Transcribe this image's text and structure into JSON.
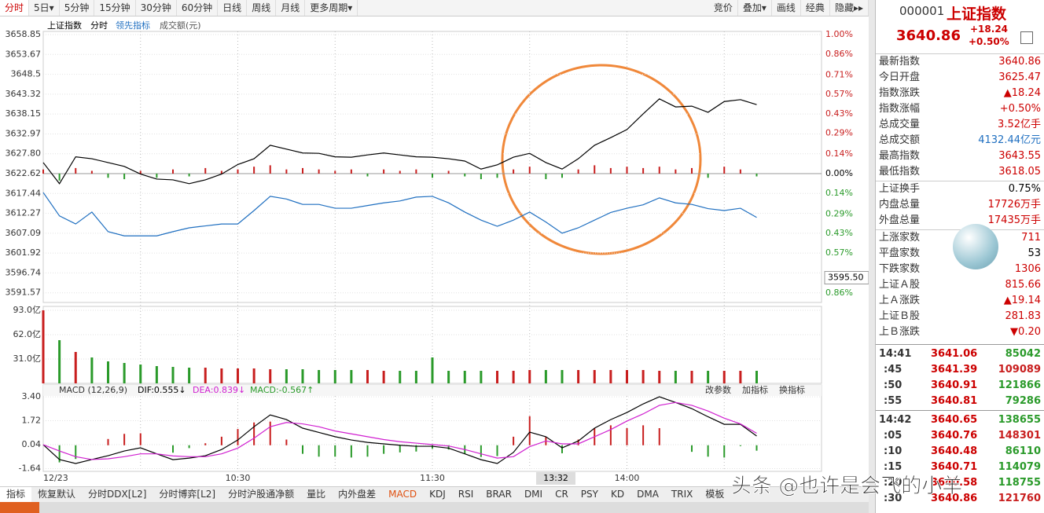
{
  "toolbar": {
    "left": [
      "分时",
      "5日▾",
      "5分钟",
      "15分钟",
      "30分钟",
      "60分钟",
      "日线",
      "周线",
      "月线",
      "更多周期▾"
    ],
    "right": [
      "竞价",
      "叠加▾",
      "画线",
      "经典",
      "隐藏▸▸"
    ]
  },
  "chart_data": [
    {
      "type": "line",
      "period": "分时",
      "xlim": [
        0,
        240
      ],
      "ylim": [
        3589.05,
        3659.67
      ],
      "y2lim": [
        -0.927,
        1.023
      ],
      "yticks": [
        3658.85,
        3653.67,
        3648.5,
        {
          "value": 3643.32,
          "label": "3643.32"
        },
        3638.15,
        3632.97,
        {
          "value": 3627.8,
          "label": "3627.80"
        },
        3622.62,
        3617.44,
        3612.27,
        3607.09,
        3601.92,
        3596.74,
        3591.57
      ],
      "y2ticks": [
        {
          "value": 1.0,
          "label": "1.00%"
        },
        {
          "value": 0.86,
          "label": "0.86%"
        },
        {
          "value": 0.71,
          "label": "0.71%"
        },
        {
          "value": 0.57,
          "label": "0.57%"
        },
        {
          "value": 0.43,
          "label": "0.43%"
        },
        {
          "value": 0.29,
          "label": "0.29%"
        },
        {
          "value": 0.14,
          "label": "0.14%"
        },
        {
          "value": 0,
          "label": "0.00%"
        },
        {
          "value": -0.14,
          "label": "0.14%"
        },
        {
          "value": -0.29,
          "label": "0.29%"
        },
        {
          "value": -0.43,
          "label": "0.43%"
        },
        {
          "value": -0.57,
          "label": "0.57%"
        },
        {
          "value": -0.86,
          "label": "0.86%"
        }
      ],
      "xgrid": [
        30,
        60,
        90,
        120,
        150,
        180,
        210
      ],
      "cursor_value": {
        "value": 3595.5,
        "label": "3595.50"
      },
      "x": [
        0,
        5,
        10,
        15,
        20,
        25,
        30,
        35,
        40,
        45,
        50,
        55,
        60,
        65,
        70,
        75,
        80,
        85,
        90,
        95,
        100,
        105,
        110,
        115,
        120,
        125,
        130,
        135,
        140,
        145,
        150,
        155,
        160,
        165,
        170,
        175,
        180,
        185,
        190,
        195,
        200,
        205,
        210,
        215,
        220
      ],
      "series": [
        {
          "name": "上证指数",
          "color": "#000000",
          "values": [
            3625.5,
            3620.0,
            3627.0,
            3626.5,
            3625.5,
            3624.5,
            3622.5,
            3621.2,
            3621.0,
            3620.0,
            3621.0,
            3622.5,
            3625.0,
            3626.5,
            3630.0,
            3629.0,
            3628.0,
            3627.9,
            3627.0,
            3626.9,
            3627.5,
            3628.0,
            3627.5,
            3627.0,
            3626.9,
            3626.5,
            3625.9,
            3623.8,
            3624.9,
            3626.9,
            3627.9,
            3625.5,
            3623.8,
            3626.5,
            3630.0,
            3632.0,
            3634.1,
            3638.2,
            3642.1,
            3640.0,
            3640.2,
            3638.6,
            3641.4,
            3641.9,
            3640.6
          ]
        },
        {
          "name": "领先指标",
          "color": "#1f6fc0",
          "values": [
            3617.7,
            3611.6,
            3609.5,
            3612.6,
            3607.5,
            3606.4,
            3606.4,
            3606.4,
            3607.5,
            3608.5,
            3609.0,
            3609.5,
            3609.5,
            3613.0,
            3616.7,
            3616.0,
            3614.6,
            3614.6,
            3613.6,
            3613.6,
            3614.3,
            3615.0,
            3615.5,
            3616.5,
            3616.7,
            3615.0,
            3612.6,
            3610.5,
            3608.9,
            3610.5,
            3612.6,
            3610.0,
            3607.1,
            3608.5,
            3610.5,
            3612.5,
            3613.6,
            3614.5,
            3616.3,
            3615.0,
            3614.6,
            3613.5,
            3613.0,
            3613.6,
            3611.2
          ]
        }
      ],
      "bars": {
        "axis": "y2",
        "up_color": "#c81e1e",
        "down_color": "#2a9a2a",
        "values": [
          0.03,
          -0.05,
          0.04,
          0.02,
          -0.03,
          -0.04,
          0.02,
          -0.03,
          0.03,
          -0.02,
          0.04,
          0.02,
          0.03,
          0.05,
          0.06,
          0.03,
          0.04,
          0.03,
          0.02,
          0.03,
          -0.02,
          0.03,
          0.02,
          0.03,
          -0.03,
          0.02,
          -0.02,
          -0.04,
          -0.03,
          0.03,
          0.05,
          -0.04,
          -0.03,
          0.03,
          0.06,
          0.04,
          0.05,
          0.04,
          0.05,
          0.03,
          0.04,
          -0.03,
          0.05,
          0.03,
          -0.02
        ]
      }
    },
    {
      "type": "bar",
      "title": "成交额(元)",
      "xlim": [
        0,
        240
      ],
      "ylim": [
        0,
        98
      ],
      "up_color": "#c81e1e",
      "down_color": "#2a9a2a",
      "yticks": [
        {
          "value": 93,
          "label": "93.0亿"
        },
        {
          "value": 62,
          "label": "62.0亿"
        },
        {
          "value": 31,
          "label": "31.0亿"
        }
      ],
      "x": [
        0,
        5,
        10,
        15,
        20,
        25,
        30,
        35,
        40,
        45,
        50,
        55,
        60,
        65,
        70,
        75,
        80,
        85,
        90,
        95,
        100,
        105,
        110,
        115,
        120,
        125,
        130,
        135,
        140,
        145,
        150,
        155,
        160,
        165,
        170,
        175,
        180,
        185,
        190,
        195,
        200,
        205,
        210,
        215,
        220
      ],
      "values": [
        93,
        55,
        40,
        33,
        28,
        26,
        24,
        22,
        21,
        20,
        20,
        19,
        19,
        19,
        18,
        18,
        18,
        17,
        17,
        17,
        17,
        16,
        16,
        16,
        33,
        16,
        16,
        16,
        16,
        16,
        17,
        17,
        17,
        17,
        17,
        17,
        17,
        17,
        16,
        16,
        16,
        16,
        16,
        16,
        16
      ]
    },
    {
      "type": "macd",
      "header": [
        "MACD (12,26,9)",
        "DIF:0.555↓",
        "DEA:0.839↓",
        "MACD:-0.567↑"
      ],
      "actions": [
        "改参数",
        "加指标",
        "换指标"
      ],
      "xlim": [
        0,
        240
      ],
      "ylim": [
        -1.83,
        4.23
      ],
      "up_color": "#c81e1e",
      "down_color": "#2a9a2a",
      "yticks": [
        {
          "value": 3.4,
          "label": "3.40"
        },
        1.72,
        0.04,
        -1.64
      ],
      "xticks": [
        {
          "value": 0,
          "label": "12/23"
        },
        {
          "value": 60,
          "label": "10:30"
        },
        {
          "value": 120,
          "label": "11:30"
        },
        {
          "value": 180,
          "label": "14:00"
        }
      ],
      "cursor_x": {
        "value": 152,
        "label": "13:32"
      },
      "x": [
        0,
        5,
        10,
        15,
        20,
        25,
        30,
        35,
        40,
        45,
        50,
        55,
        60,
        65,
        70,
        75,
        80,
        85,
        90,
        95,
        100,
        105,
        110,
        115,
        120,
        125,
        130,
        135,
        140,
        145,
        150,
        155,
        160,
        165,
        170,
        175,
        180,
        185,
        190,
        195,
        200,
        205,
        210,
        215,
        220
      ],
      "series": [
        {
          "color": "#000000",
          "values": [
            0.04,
            -1.0,
            -1.28,
            -1.0,
            -0.73,
            -0.4,
            -0.18,
            -0.6,
            -1.01,
            -0.9,
            -0.73,
            -0.3,
            0.37,
            1.3,
            2.13,
            1.8,
            1.2,
            0.9,
            0.6,
            0.37,
            0.2,
            0.1,
            0.0,
            -0.07,
            -0.07,
            -0.2,
            -0.6,
            -1.01,
            -1.28,
            -0.5,
            0.92,
            0.6,
            -0.18,
            0.3,
            1.2,
            1.8,
            2.3,
            2.9,
            3.4,
            3.0,
            2.57,
            2.0,
            1.47,
            1.47,
            0.65
          ]
        },
        {
          "color": "#d020d0",
          "values": [
            0.04,
            -0.4,
            -0.8,
            -1.0,
            -0.95,
            -0.8,
            -0.6,
            -0.6,
            -0.75,
            -0.8,
            -0.8,
            -0.6,
            -0.2,
            0.5,
            1.3,
            1.6,
            1.5,
            1.3,
            1.0,
            0.8,
            0.6,
            0.4,
            0.25,
            0.15,
            0.05,
            -0.05,
            -0.3,
            -0.6,
            -0.9,
            -0.8,
            -0.1,
            0.3,
            0.1,
            0.1,
            0.6,
            1.1,
            1.7,
            2.2,
            2.8,
            3.0,
            2.8,
            2.4,
            1.9,
            1.5,
            0.84
          ]
        }
      ],
      "bars": [
        0,
        -1.2,
        -0.96,
        0,
        0.44,
        0.8,
        0.84,
        0,
        -0.52,
        -0.2,
        0.14,
        0.6,
        1.14,
        1.6,
        1.66,
        0.4,
        -0.6,
        -0.8,
        -0.8,
        -0.86,
        -0.8,
        -0.6,
        -0.5,
        -0.44,
        -0.24,
        -0.3,
        -0.6,
        -0.82,
        -0.76,
        0.6,
        2.04,
        0.6,
        -0.56,
        0.4,
        1.2,
        1.4,
        1.2,
        1.4,
        1.2,
        0,
        -0.46,
        -0.8,
        -0.86,
        -0.06,
        -0.38
      ]
    }
  ],
  "side_panel": {
    "code": "000001",
    "name": "上证指数",
    "price": "3640.86",
    "change": "+18.24",
    "change_pct": "+0.50%",
    "groups": [
      [
        [
          "最新指数",
          "3640.86"
        ],
        [
          "今日开盘",
          "3625.47"
        ],
        [
          "指数涨跌",
          "▲18.24"
        ],
        [
          "指数涨幅",
          "+0.50%"
        ],
        [
          "总成交量",
          "3.52亿手"
        ],
        [
          "总成交额",
          "4132.44亿元"
        ],
        [
          "最高指数",
          "3643.55"
        ],
        [
          "最低指数",
          "3618.05"
        ]
      ],
      [
        [
          "上证换手",
          "0.75%"
        ],
        [
          "内盘总量",
          "17726万手"
        ],
        [
          "外盘总量",
          "17435万手"
        ]
      ],
      [
        [
          "上涨家数",
          "711"
        ],
        [
          "平盘家数",
          "53"
        ],
        [
          "下跌家数",
          "1306"
        ],
        [
          "上证Ａ股",
          "815.66"
        ],
        [
          "上Ａ涨跌",
          "▲19.14"
        ],
        [
          "上证Ｂ股",
          "281.83"
        ],
        [
          "上Ｂ涨跌",
          "▼0.20"
        ]
      ]
    ],
    "trades": [
      [
        {
          "time": "14:41",
          "price": "3641.06",
          "volume": "85042",
          "color": "#2a9a2a"
        },
        {
          "time": ":45",
          "price": "3641.39",
          "volume": "109089",
          "color": "#c81e1e"
        },
        {
          "time": ":50",
          "price": "3640.91",
          "volume": "121866",
          "color": "#2a9a2a"
        },
        {
          "time": ":55",
          "price": "3640.81",
          "volume": "79286",
          "color": "#2a9a2a"
        }
      ],
      [
        {
          "time": "14:42",
          "price": "3640.65",
          "volume": "138655",
          "color": "#2a9a2a"
        },
        {
          "time": ":05",
          "price": "3640.76",
          "volume": "148301",
          "color": "#c81e1e"
        },
        {
          "time": ":10",
          "price": "3640.48",
          "volume": "86110",
          "color": "#2a9a2a"
        },
        {
          "time": ":15",
          "price": "3640.71",
          "volume": "114079",
          "color": "#2a9a2a"
        },
        {
          "time": ":20",
          "price": "3640.58",
          "volume": "118755",
          "color": "#2a9a2a"
        },
        {
          "time": ":30",
          "price": "3640.86",
          "volume": "121760",
          "color": "#c81e1e"
        }
      ]
    ]
  },
  "bottom_tabs": [
    "指标",
    "恢复默认",
    "分时DDX[L2]",
    "分时博弈[L2]",
    "分时沪股通净额",
    "量比",
    "内外盘差",
    "MACD",
    "KDJ",
    "RSI",
    "BRAR",
    "DMI",
    "CR",
    "PSY",
    "KD",
    "DMA",
    "TRIX",
    "模板"
  ],
  "watermark": "头条 @也许是会飞的小羊"
}
